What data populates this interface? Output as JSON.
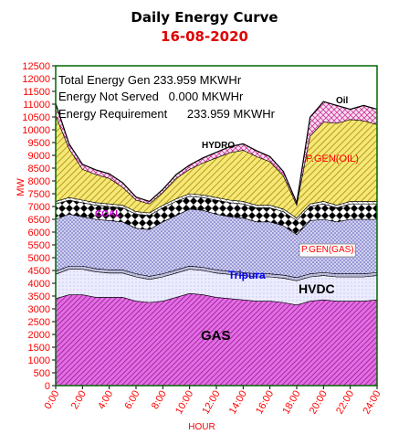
{
  "chart_data": {
    "type": "area",
    "title": "Daily Energy Curve",
    "subtitle": "16-08-2020",
    "xlabel": "HOUR",
    "ylabel": "MW",
    "ylim": [
      0,
      12500
    ],
    "yticks": [
      "0",
      "500",
      "1000",
      "1500",
      "2000",
      "2500",
      "3000",
      "3500",
      "4000",
      "4500",
      "5000",
      "5500",
      "6000",
      "6500",
      "7000",
      "7500",
      "8000",
      "8500",
      "9000",
      "9500",
      "10000",
      "10500",
      "11000",
      "11500",
      "12000",
      "12500"
    ],
    "xticks": [
      "0:00",
      "2:00",
      "4:00",
      "6:00",
      "8:00",
      "10:00",
      "12:00",
      "14:00",
      "16:00",
      "18:00",
      "20:00",
      "22:00",
      "24:00"
    ],
    "x": [
      0,
      1,
      2,
      3,
      4,
      5,
      6,
      7,
      8,
      9,
      10,
      11,
      12,
      13,
      14,
      15,
      16,
      17,
      18,
      19,
      20,
      21,
      22,
      23,
      24
    ],
    "series": [
      {
        "name": "GAS",
        "values": [
          3400,
          3550,
          3550,
          3450,
          3450,
          3450,
          3300,
          3250,
          3300,
          3450,
          3600,
          3550,
          3450,
          3400,
          3350,
          3300,
          3300,
          3250,
          3150,
          3300,
          3350,
          3300,
          3300,
          3300,
          3350
        ]
      },
      {
        "name": "HVDC",
        "values": [
          950,
          1000,
          1000,
          1000,
          950,
          950,
          950,
          900,
          950,
          950,
          950,
          950,
          950,
          950,
          950,
          950,
          950,
          950,
          950,
          950,
          950,
          950,
          950,
          950,
          950
        ]
      },
      {
        "name": "Tripura",
        "values": [
          120,
          120,
          120,
          120,
          120,
          120,
          120,
          120,
          120,
          120,
          120,
          120,
          120,
          120,
          120,
          120,
          120,
          120,
          120,
          120,
          120,
          120,
          120,
          120,
          120
        ]
      },
      {
        "name": "P.GEN(GAS).",
        "values": [
          2030,
          2030,
          1930,
          1930,
          1930,
          1880,
          1780,
          1830,
          2030,
          2130,
          2230,
          2230,
          2180,
          2130,
          2130,
          2030,
          2030,
          1930,
          1680,
          2080,
          2080,
          2030,
          2130,
          2130,
          2080
        ]
      },
      {
        "name": "COAL",
        "values": [
          600,
          550,
          550,
          550,
          550,
          550,
          550,
          550,
          550,
          550,
          500,
          500,
          550,
          550,
          550,
          550,
          550,
          550,
          550,
          550,
          600,
          550,
          600,
          600,
          600
        ]
      },
      {
        "name": "HYDRO",
        "values": [
          100,
          100,
          100,
          100,
          100,
          100,
          100,
          100,
          100,
          100,
          100,
          100,
          100,
          100,
          100,
          100,
          100,
          100,
          100,
          100,
          100,
          100,
          100,
          100,
          100
        ]
      },
      {
        "name": "P.GEN(OIL)",
        "values": [
          3350,
          1900,
          1200,
          1100,
          1000,
          700,
          450,
          350,
          500,
          800,
          950,
          1250,
          1550,
          1850,
          2000,
          1900,
          1700,
          1300,
          500,
          2650,
          3100,
          3200,
          3200,
          3150,
          3000
        ]
      },
      {
        "name": "Oil",
        "values": [
          480,
          200,
          200,
          180,
          180,
          180,
          120,
          100,
          120,
          150,
          170,
          200,
          220,
          240,
          250,
          230,
          200,
          170,
          100,
          740,
          800,
          700,
          400,
          600,
          600
        ]
      }
    ],
    "annotations": [
      "Total Energy Gen 233.959 MKWHr",
      "Energy Not Served   0.000 MKWHr",
      "Energy Requirement      233.959 MKWHr"
    ],
    "colors": {
      "GAS": "#cc33cc",
      "HVDC": "#e6e6ff",
      "Tripura": "#b8b8d8",
      "P.GEN(GAS).": "#8a8ad0",
      "COAL": "#000000",
      "HYDRO": "#d8d8f0",
      "P.GEN(OIL)": "#e0c830",
      "Oil": "#cc33aa",
      "plot_border": "#006600",
      "label_red": "#ff0000",
      "label_blue": "#0000ff",
      "label_magenta": "#cc00cc"
    }
  }
}
